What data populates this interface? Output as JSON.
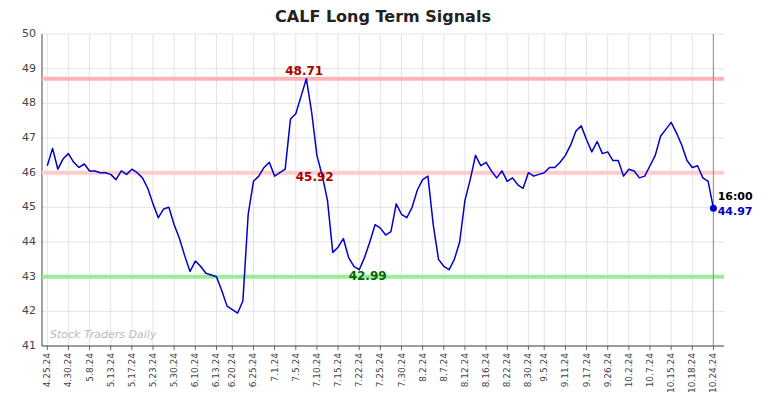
{
  "chart_data": {
    "type": "line",
    "title": "CALF Long Term Signals",
    "color": "#0000CC",
    "grid": true,
    "ylim": [
      41,
      50
    ],
    "yticks": [
      41,
      42,
      43,
      44,
      45,
      46,
      47,
      48,
      49,
      50
    ],
    "categories": [
      "4.25.24",
      null,
      null,
      null,
      "4.30.24",
      null,
      null,
      null,
      "5.8.24",
      null,
      null,
      null,
      "5.13.24",
      null,
      null,
      null,
      "5.17.24",
      null,
      null,
      null,
      "5.23.24",
      null,
      null,
      null,
      "5.30.24",
      null,
      null,
      null,
      "6.10.24",
      null,
      null,
      null,
      "6.13.24",
      null,
      null,
      "6.20.24",
      null,
      null,
      null,
      "6.25.24",
      null,
      null,
      null,
      "7.1.24",
      null,
      null,
      null,
      "7.5.24",
      null,
      null,
      null,
      "7.10.24",
      null,
      null,
      null,
      "7.15.24",
      null,
      null,
      null,
      "7.22.24",
      null,
      null,
      null,
      "7.25.24",
      null,
      null,
      null,
      "7.30.24",
      null,
      null,
      null,
      "8.2.24",
      null,
      null,
      null,
      "8.7.24",
      null,
      null,
      null,
      "8.12.24",
      null,
      null,
      null,
      "8.16.24",
      null,
      null,
      null,
      "8.22.24",
      null,
      null,
      null,
      "8.30.24",
      null,
      null,
      "9.5.24",
      null,
      null,
      null,
      "9.11.24",
      null,
      null,
      null,
      "9.17.24",
      null,
      null,
      null,
      "9.26.24",
      null,
      null,
      null,
      "10.2.24",
      null,
      null,
      null,
      "10.7.24",
      null,
      null,
      null,
      "10.15.24",
      null,
      null,
      null,
      "10.18.24",
      null,
      null,
      null,
      "10.24.24"
    ],
    "values": [
      46.2,
      46.7,
      46.1,
      46.4,
      46.55,
      46.3,
      46.15,
      46.25,
      46.05,
      46.05,
      46.0,
      46.0,
      45.95,
      45.8,
      46.05,
      45.95,
      46.1,
      46.0,
      45.85,
      45.55,
      45.1,
      44.7,
      44.95,
      45.0,
      44.5,
      44.1,
      43.6,
      43.15,
      43.45,
      43.3,
      43.1,
      43.05,
      43.0,
      42.6,
      42.15,
      42.05,
      41.95,
      42.3,
      44.8,
      45.75,
      45.9,
      46.15,
      46.3,
      45.9,
      46.0,
      46.1,
      47.55,
      47.7,
      48.2,
      48.71,
      47.75,
      46.5,
      45.92,
      45.2,
      43.7,
      43.85,
      44.1,
      43.55,
      43.3,
      43.2,
      43.55,
      44.0,
      44.5,
      44.4,
      44.2,
      44.3,
      45.1,
      44.8,
      44.7,
      45.0,
      45.5,
      45.8,
      45.9,
      44.5,
      43.5,
      43.3,
      43.2,
      43.5,
      44.0,
      45.2,
      45.8,
      46.5,
      46.2,
      46.3,
      46.05,
      45.85,
      46.05,
      45.75,
      45.85,
      45.65,
      45.55,
      46.0,
      45.9,
      45.95,
      46.0,
      46.15,
      46.15,
      46.3,
      46.5,
      46.8,
      47.2,
      47.35,
      46.95,
      46.6,
      46.9,
      46.55,
      46.6,
      46.35,
      46.35,
      45.9,
      46.1,
      46.05,
      45.85,
      45.9,
      46.2,
      46.5,
      47.05,
      47.25,
      47.45,
      47.15,
      46.8,
      46.35,
      46.15,
      46.2,
      45.85,
      45.75,
      44.97
    ],
    "reference_lines": [
      {
        "value": 48.71,
        "color": "#ffb3b3"
      },
      {
        "value": 46.0,
        "color": "#ffcccc"
      },
      {
        "value": 43.0,
        "color": "#99ee99"
      }
    ],
    "annotations": [
      {
        "text": "48.71",
        "x": 45,
        "y": 48.81,
        "color": "#aa0000"
      },
      {
        "text": "42.99",
        "x": 57,
        "y": 42.9,
        "color": "#006600"
      },
      {
        "text": "45.92",
        "x": 47,
        "y": 45.77,
        "color": "#aa0000"
      },
      {
        "text": "16:00",
        "x": 126.8,
        "y": 45.22,
        "color": "#000000"
      },
      {
        "text": "44.97",
        "x": 126.8,
        "y": 44.77,
        "color": "#0000CC"
      }
    ],
    "watermark": {
      "text": "Stock Traders Daily",
      "color": "#bbbbbb"
    }
  }
}
